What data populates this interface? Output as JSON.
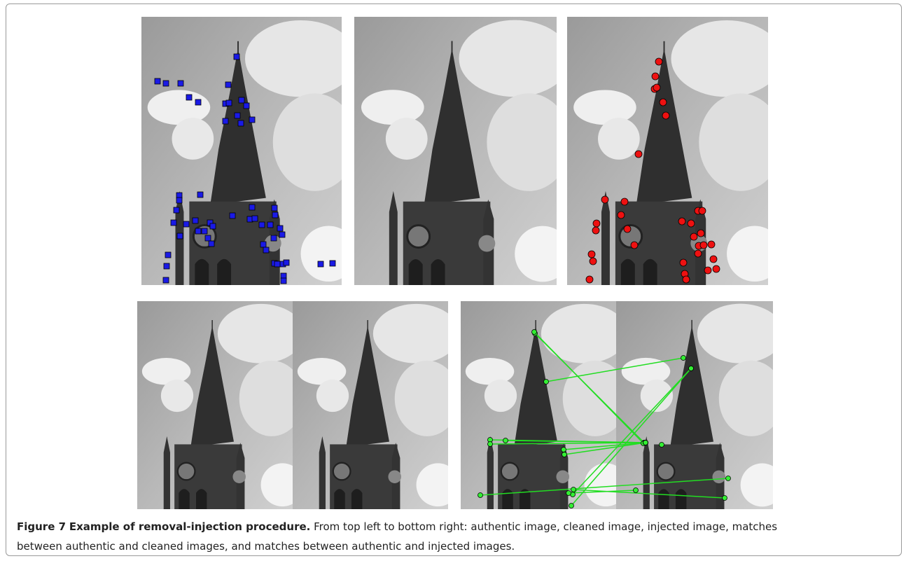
{
  "figure": {
    "label": "Figure 7",
    "title": "Example of removal-injection procedure.",
    "caption": "From top left to bottom right: authentic image, cleaned image, injected image, matches between authentic and cleaned images, and matches between authentic and injected images."
  }
}
